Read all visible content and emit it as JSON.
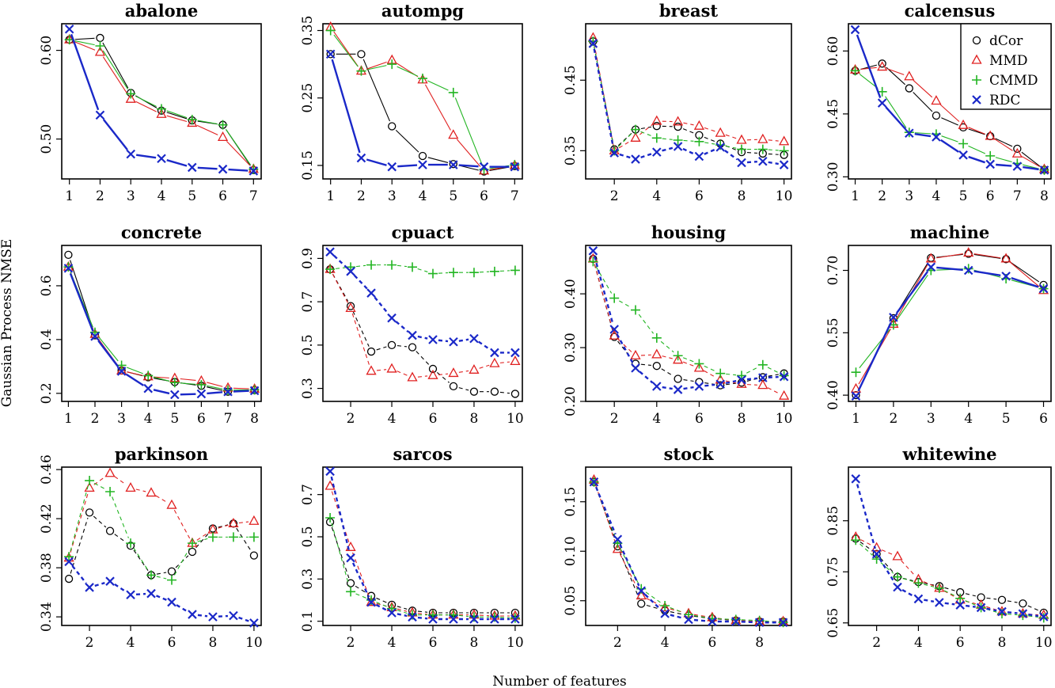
{
  "figure": {
    "xlabel": "Number of features",
    "ylabel": "Gaussian Process NMSE"
  },
  "legend": [
    {
      "name": "dCor",
      "color": "#000000",
      "marker": "circle"
    },
    {
      "name": "MMD",
      "color": "#e02020",
      "marker": "triangle"
    },
    {
      "name": "CMMD",
      "color": "#22b522",
      "marker": "plus"
    },
    {
      "name": "RDC",
      "color": "#1a28c8",
      "marker": "cross"
    }
  ],
  "chart_data": [
    {
      "type": "line",
      "title": "abalone",
      "x": [
        1,
        2,
        3,
        4,
        5,
        6,
        7
      ],
      "xticks": [
        1,
        2,
        3,
        4,
        5,
        6,
        7
      ],
      "xlim": [
        0.75,
        7.25
      ],
      "yticks": [
        0.5,
        0.6
      ],
      "ytick_labels": [
        "0.50",
        "0.60"
      ],
      "ylim": [
        0.455,
        0.63
      ],
      "series": [
        {
          "name": "dCor",
          "values": [
            0.612,
            0.614,
            0.552,
            0.532,
            0.521,
            0.516,
            0.465
          ]
        },
        {
          "name": "MMD",
          "values": [
            0.612,
            0.598,
            0.545,
            0.528,
            0.518,
            0.502,
            0.466
          ]
        },
        {
          "name": "CMMD",
          "values": [
            0.612,
            0.605,
            0.551,
            0.534,
            0.522,
            0.516,
            0.466
          ]
        },
        {
          "name": "RDC",
          "values": [
            0.624,
            0.527,
            0.483,
            0.478,
            0.468,
            0.466,
            0.464
          ]
        }
      ]
    },
    {
      "type": "line",
      "title": "autompg",
      "x": [
        1,
        2,
        3,
        4,
        5,
        6,
        7
      ],
      "xticks": [
        1,
        2,
        3,
        4,
        5,
        6,
        7
      ],
      "xlim": [
        0.75,
        7.25
      ],
      "yticks": [
        0.15,
        0.25,
        0.35
      ],
      "ytick_labels": [
        "0.15",
        "0.25",
        "0.35"
      ],
      "ylim": [
        0.13,
        0.36
      ],
      "series": [
        {
          "name": "dCor",
          "values": [
            0.315,
            0.315,
            0.208,
            0.164,
            0.152,
            0.141,
            0.149
          ]
        },
        {
          "name": "MMD",
          "values": [
            0.355,
            0.29,
            0.306,
            0.277,
            0.195,
            0.142,
            0.15
          ]
        },
        {
          "name": "CMMD",
          "values": [
            0.35,
            0.29,
            0.3,
            0.279,
            0.258,
            0.144,
            0.151
          ]
        },
        {
          "name": "RDC",
          "values": [
            0.315,
            0.161,
            0.148,
            0.151,
            0.151,
            0.148,
            0.148
          ]
        }
      ]
    },
    {
      "type": "line",
      "title": "breast",
      "x": [
        1,
        2,
        3,
        4,
        5,
        6,
        7,
        8,
        9,
        10
      ],
      "xticks": [
        2,
        4,
        6,
        8,
        10
      ],
      "xlim": [
        0.65,
        10.35
      ],
      "yticks": [
        0.35,
        0.45
      ],
      "ytick_labels": [
        "0.35",
        "0.45"
      ],
      "ylim": [
        0.31,
        0.53
      ],
      "series": [
        {
          "name": "dCor",
          "values": [
            0.505,
            0.352,
            0.38,
            0.385,
            0.384,
            0.372,
            0.36,
            0.348,
            0.346,
            0.344
          ]
        },
        {
          "name": "MMD",
          "values": [
            0.51,
            0.35,
            0.368,
            0.392,
            0.391,
            0.385,
            0.375,
            0.365,
            0.366,
            0.363
          ]
        },
        {
          "name": "CMMD",
          "values": [
            0.505,
            0.35,
            0.38,
            0.368,
            0.365,
            0.363,
            0.358,
            0.352,
            0.352,
            0.35
          ]
        },
        {
          "name": "RDC",
          "values": [
            0.502,
            0.347,
            0.338,
            0.348,
            0.356,
            0.342,
            0.355,
            0.333,
            0.335,
            0.33
          ]
        }
      ]
    },
    {
      "type": "line",
      "title": "calcensus",
      "x": [
        1,
        2,
        3,
        4,
        5,
        6,
        7,
        8
      ],
      "xticks": [
        1,
        2,
        3,
        4,
        5,
        6,
        7,
        8
      ],
      "xlim": [
        0.75,
        8.25
      ],
      "yticks": [
        0.3,
        0.45,
        0.6
      ],
      "ytick_labels": [
        "0.30",
        "0.45",
        "0.60"
      ],
      "ylim": [
        0.295,
        0.665
      ],
      "series": [
        {
          "name": "dCor",
          "values": [
            0.553,
            0.57,
            0.511,
            0.446,
            0.418,
            0.397,
            0.367,
            0.317
          ]
        },
        {
          "name": "MMD",
          "values": [
            0.555,
            0.562,
            0.539,
            0.481,
            0.423,
            0.397,
            0.355,
            0.318
          ]
        },
        {
          "name": "CMMD",
          "values": [
            0.553,
            0.503,
            0.406,
            0.402,
            0.379,
            0.35,
            0.332,
            0.316
          ]
        },
        {
          "name": "RDC",
          "values": [
            0.651,
            0.476,
            0.404,
            0.395,
            0.352,
            0.33,
            0.325,
            0.316
          ]
        }
      ]
    },
    {
      "type": "line",
      "title": "concrete",
      "x": [
        1,
        2,
        3,
        4,
        5,
        6,
        7,
        8
      ],
      "xticks": [
        1,
        2,
        3,
        4,
        5,
        6,
        7,
        8
      ],
      "xlim": [
        0.75,
        8.25
      ],
      "yticks": [
        0.2,
        0.4,
        0.6
      ],
      "ytick_labels": [
        "0.2",
        "0.4",
        "0.6"
      ],
      "ylim": [
        0.17,
        0.75
      ],
      "series": [
        {
          "name": "dCor",
          "values": [
            0.715,
            0.416,
            0.285,
            0.26,
            0.242,
            0.228,
            0.206,
            0.212
          ]
        },
        {
          "name": "MMD",
          "values": [
            0.67,
            0.42,
            0.284,
            0.262,
            0.256,
            0.246,
            0.22,
            0.216
          ]
        },
        {
          "name": "CMMD",
          "values": [
            0.67,
            0.427,
            0.304,
            0.266,
            0.24,
            0.232,
            0.212,
            0.213
          ]
        },
        {
          "name": "RDC",
          "values": [
            0.665,
            0.412,
            0.282,
            0.218,
            0.195,
            0.198,
            0.206,
            0.21
          ]
        }
      ]
    },
    {
      "type": "line",
      "title": "cpuact",
      "x": [
        1,
        2,
        3,
        4,
        5,
        6,
        7,
        8,
        9,
        10
      ],
      "xticks": [
        2,
        4,
        6,
        8,
        10
      ],
      "xlim": [
        0.65,
        10.35
      ],
      "yticks": [
        0.3,
        0.5,
        0.7,
        0.9
      ],
      "ytick_labels": [
        "0.3",
        "0.5",
        "0.7",
        "0.9"
      ],
      "ylim": [
        0.24,
        0.96
      ],
      "series": [
        {
          "name": "dCor",
          "values": [
            0.85,
            0.68,
            0.47,
            0.5,
            0.49,
            0.39,
            0.31,
            0.285,
            0.285,
            0.275
          ]
        },
        {
          "name": "MMD",
          "values": [
            0.85,
            0.67,
            0.38,
            0.39,
            0.35,
            0.36,
            0.37,
            0.385,
            0.415,
            0.425
          ]
        },
        {
          "name": "CMMD",
          "values": [
            0.85,
            0.86,
            0.87,
            0.87,
            0.86,
            0.83,
            0.835,
            0.835,
            0.84,
            0.845
          ]
        },
        {
          "name": "RDC",
          "values": [
            0.93,
            0.84,
            0.74,
            0.625,
            0.545,
            0.525,
            0.515,
            0.53,
            0.465,
            0.465
          ]
        }
      ]
    },
    {
      "type": "line",
      "title": "housing",
      "x": [
        1,
        2,
        3,
        4,
        5,
        6,
        7,
        8,
        9,
        10
      ],
      "xticks": [
        2,
        4,
        6,
        8,
        10
      ],
      "xlim": [
        0.65,
        10.35
      ],
      "yticks": [
        0.2,
        0.3,
        0.4
      ],
      "ytick_labels": [
        "0.20",
        "0.30",
        "0.40"
      ],
      "ylim": [
        0.2,
        0.49
      ],
      "series": [
        {
          "name": "dCor",
          "values": [
            0.465,
            0.32,
            0.27,
            0.266,
            0.242,
            0.236,
            0.23,
            0.235,
            0.245,
            0.252
          ]
        },
        {
          "name": "MMD",
          "values": [
            0.465,
            0.322,
            0.285,
            0.287,
            0.277,
            0.262,
            0.24,
            0.232,
            0.23,
            0.21
          ]
        },
        {
          "name": "CMMD",
          "values": [
            0.46,
            0.392,
            0.37,
            0.318,
            0.285,
            0.27,
            0.252,
            0.248,
            0.268,
            0.248
          ]
        },
        {
          "name": "RDC",
          "values": [
            0.48,
            0.334,
            0.262,
            0.228,
            0.222,
            0.228,
            0.232,
            0.24,
            0.244,
            0.246
          ]
        }
      ]
    },
    {
      "type": "line",
      "title": "machine",
      "x": [
        1,
        2,
        3,
        4,
        5,
        6
      ],
      "xticks": [
        1,
        2,
        3,
        4,
        5,
        6
      ],
      "xlim": [
        0.8,
        6.2
      ],
      "yticks": [
        0.4,
        0.55,
        0.7
      ],
      "ytick_labels": [
        "0.40",
        "0.55",
        "0.70"
      ],
      "ylim": [
        0.385,
        0.76
      ],
      "series": [
        {
          "name": "dCor",
          "values": [
            0.4,
            0.585,
            0.73,
            0.74,
            0.727,
            0.665
          ]
        },
        {
          "name": "MMD",
          "values": [
            0.415,
            0.571,
            0.728,
            0.742,
            0.728,
            0.652
          ]
        },
        {
          "name": "CMMD",
          "values": [
            0.455,
            0.569,
            0.7,
            0.704,
            0.68,
            0.656
          ]
        },
        {
          "name": "RDC",
          "values": [
            0.398,
            0.587,
            0.708,
            0.7,
            0.686,
            0.656
          ]
        }
      ]
    },
    {
      "type": "line",
      "title": "parkinson",
      "x": [
        1,
        2,
        3,
        4,
        5,
        6,
        7,
        8,
        9,
        10
      ],
      "xticks": [
        2,
        4,
        6,
        8,
        10
      ],
      "xlim": [
        0.65,
        10.35
      ],
      "yticks": [
        0.34,
        0.38,
        0.42,
        0.46
      ],
      "ytick_labels": [
        "0.34",
        "0.38",
        "0.42",
        "0.46"
      ],
      "ylim": [
        0.333,
        0.462
      ],
      "series": [
        {
          "name": "dCor",
          "values": [
            0.371,
            0.425,
            0.41,
            0.398,
            0.374,
            0.377,
            0.393,
            0.412,
            0.416,
            0.39
          ]
        },
        {
          "name": "MMD",
          "values": [
            0.388,
            0.445,
            0.457,
            0.445,
            0.441,
            0.431,
            0.4,
            0.411,
            0.416,
            0.418
          ]
        },
        {
          "name": "CMMD",
          "values": [
            0.389,
            0.451,
            0.442,
            0.4,
            0.374,
            0.37,
            0.4,
            0.405,
            0.405,
            0.405
          ]
        },
        {
          "name": "RDC",
          "values": [
            0.385,
            0.364,
            0.369,
            0.358,
            0.359,
            0.352,
            0.342,
            0.34,
            0.341,
            0.335
          ]
        }
      ]
    },
    {
      "type": "line",
      "title": "sarcos",
      "x": [
        1,
        2,
        3,
        4,
        5,
        6,
        7,
        8,
        9,
        10
      ],
      "xticks": [
        2,
        4,
        6,
        8,
        10
      ],
      "xlim": [
        0.65,
        10.35
      ],
      "yticks": [
        0.1,
        0.3,
        0.5,
        0.7
      ],
      "ytick_labels": [
        "0.1",
        "0.3",
        "0.5",
        "0.7"
      ],
      "ylim": [
        0.08,
        0.83
      ],
      "series": [
        {
          "name": "dCor",
          "values": [
            0.57,
            0.28,
            0.22,
            0.178,
            0.15,
            0.14,
            0.14,
            0.14,
            0.14,
            0.14
          ]
        },
        {
          "name": "MMD",
          "values": [
            0.74,
            0.45,
            0.19,
            0.165,
            0.14,
            0.13,
            0.13,
            0.13,
            0.125,
            0.125
          ]
        },
        {
          "name": "CMMD",
          "values": [
            0.59,
            0.24,
            0.2,
            0.16,
            0.13,
            0.13,
            0.13,
            0.12,
            0.12,
            0.115
          ]
        },
        {
          "name": "RDC",
          "values": [
            0.81,
            0.4,
            0.19,
            0.14,
            0.12,
            0.11,
            0.11,
            0.11,
            0.11,
            0.11
          ]
        }
      ]
    },
    {
      "type": "line",
      "title": "stock",
      "x": [
        1,
        2,
        3,
        4,
        5,
        6,
        7,
        8,
        9
      ],
      "xticks": [
        2,
        4,
        6,
        8
      ],
      "xlim": [
        0.65,
        9.35
      ],
      "yticks": [
        0.05,
        0.1,
        0.15
      ],
      "ytick_labels": [
        "0.05",
        "0.10",
        "0.15"
      ],
      "ylim": [
        0.025,
        0.185
      ],
      "series": [
        {
          "name": "dCor",
          "values": [
            0.17,
            0.105,
            0.047,
            0.04,
            0.035,
            0.032,
            0.03,
            0.029,
            0.029
          ]
        },
        {
          "name": "MMD",
          "values": [
            0.172,
            0.102,
            0.055,
            0.043,
            0.037,
            0.033,
            0.03,
            0.029,
            0.029
          ]
        },
        {
          "name": "CMMD",
          "values": [
            0.17,
            0.108,
            0.062,
            0.045,
            0.036,
            0.032,
            0.031,
            0.03,
            0.028
          ]
        },
        {
          "name": "RDC",
          "values": [
            0.17,
            0.112,
            0.06,
            0.037,
            0.031,
            0.029,
            0.029,
            0.028,
            0.028
          ]
        }
      ]
    },
    {
      "type": "line",
      "title": "whitewine",
      "x": [
        1,
        2,
        3,
        4,
        5,
        6,
        7,
        8,
        9,
        10
      ],
      "xticks": [
        2,
        4,
        6,
        8,
        10
      ],
      "xlim": [
        0.65,
        10.35
      ],
      "yticks": [
        0.65,
        0.75,
        0.85
      ],
      "ytick_labels": [
        "0.65",
        "0.75",
        "0.85"
      ],
      "ylim": [
        0.645,
        0.955
      ],
      "series": [
        {
          "name": "dCor",
          "values": [
            0.815,
            0.785,
            0.74,
            0.73,
            0.722,
            0.71,
            0.7,
            0.695,
            0.688,
            0.67
          ]
        },
        {
          "name": "MMD",
          "values": [
            0.818,
            0.797,
            0.78,
            0.735,
            0.718,
            0.695,
            0.685,
            0.672,
            0.668,
            0.665
          ]
        },
        {
          "name": "CMMD",
          "values": [
            0.812,
            0.775,
            0.74,
            0.728,
            0.718,
            0.698,
            0.68,
            0.668,
            0.665,
            0.66
          ]
        },
        {
          "name": "RDC",
          "values": [
            0.932,
            0.785,
            0.72,
            0.697,
            0.69,
            0.685,
            0.68,
            0.672,
            0.668,
            0.662
          ]
        }
      ]
    }
  ]
}
